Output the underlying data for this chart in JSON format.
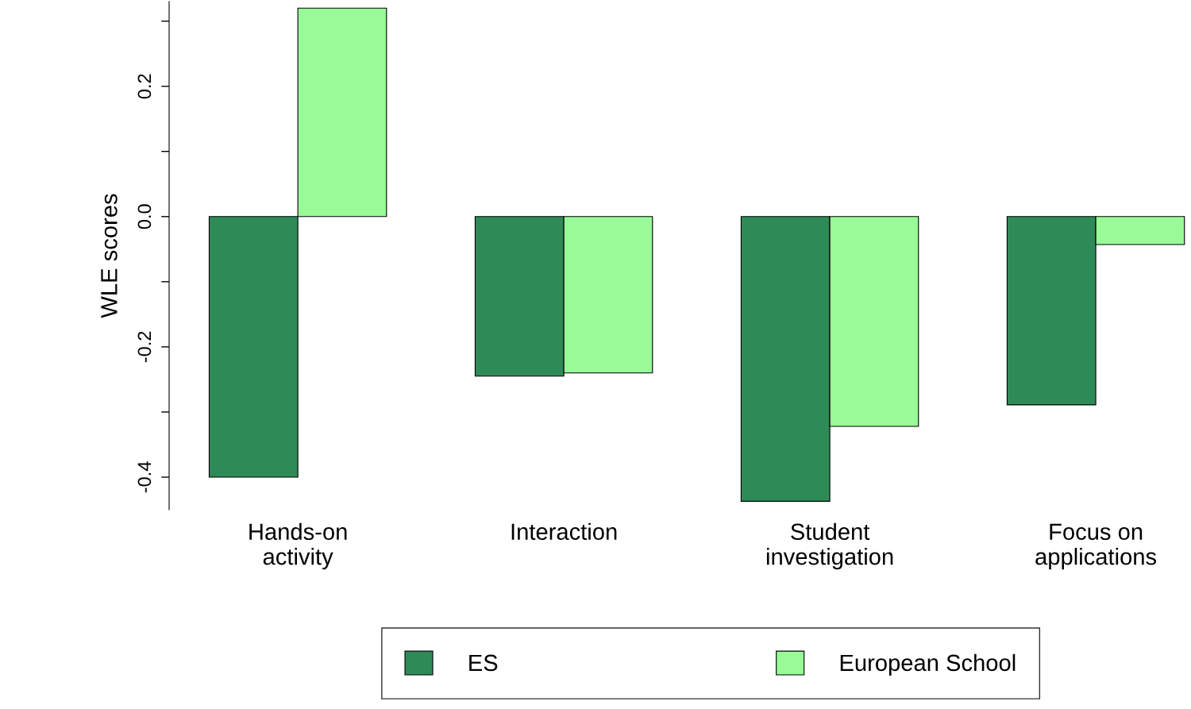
{
  "chart_data": {
    "type": "bar",
    "ylabel": "WLE scores",
    "categories": [
      "Hands-on\nactivity",
      "Interaction",
      "Student\ninvestigation",
      "Focus on\napplications"
    ],
    "series": [
      {
        "name": "ES",
        "color": "#2e8b57",
        "values": [
          -0.4,
          -0.245,
          -0.437,
          -0.289
        ]
      },
      {
        "name": "European School",
        "color": "#98fb98",
        "values": [
          0.32,
          -0.24,
          -0.322,
          -0.043
        ]
      }
    ],
    "ylim": [
      -0.45,
      0.33
    ],
    "yticks": [
      -0.4,
      {
        "value": -0.3,
        "label": null
      },
      {
        "value": -0.2,
        "label": "-0.2"
      },
      {
        "value": -0.1,
        "label": null
      },
      {
        "value": 0,
        "label": "0.0"
      },
      {
        "value": 0.1,
        "label": null
      },
      0.2,
      {
        "value": 0.3,
        "label": null
      }
    ],
    "grid": false,
    "legend": "bottom"
  }
}
